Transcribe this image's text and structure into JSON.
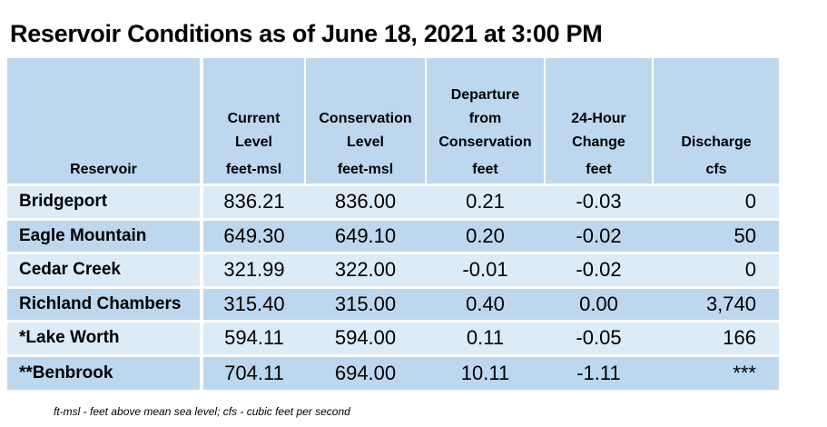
{
  "title": "Reservoir Conditions as of June 18, 2021 at 3:00 PM",
  "columns": [
    {
      "header_lines": [
        "Reservoir"
      ],
      "unit": ""
    },
    {
      "header_lines": [
        "Current",
        "Level"
      ],
      "unit": "feet-msl"
    },
    {
      "header_lines": [
        "Conservation",
        "Level"
      ],
      "unit": "feet-msl"
    },
    {
      "header_lines": [
        "Departure",
        "from",
        "Conservation"
      ],
      "unit": "feet"
    },
    {
      "header_lines": [
        "24-Hour",
        "Change"
      ],
      "unit": "feet"
    },
    {
      "header_lines": [
        "Discharge"
      ],
      "unit": "cfs"
    }
  ],
  "rows": [
    {
      "reservoir": "Bridgeport",
      "current": "836.21",
      "conservation": "836.00",
      "departure": "0.21",
      "change": "-0.03",
      "discharge": "0"
    },
    {
      "reservoir": "Eagle Mountain",
      "current": "649.30",
      "conservation": "649.10",
      "departure": "0.20",
      "change": "-0.02",
      "discharge": "50"
    },
    {
      "reservoir": "Cedar Creek",
      "current": "321.99",
      "conservation": "322.00",
      "departure": "-0.01",
      "change": "-0.02",
      "discharge": "0"
    },
    {
      "reservoir": "Richland Chambers",
      "current": "315.40",
      "conservation": "315.00",
      "departure": "0.40",
      "change": "0.00",
      "discharge": "3,740"
    },
    {
      "reservoir": "*Lake Worth",
      "current": "594.11",
      "conservation": "594.00",
      "departure": "0.11",
      "change": "-0.05",
      "discharge": "166"
    },
    {
      "reservoir": "**Benbrook",
      "current": "704.11",
      "conservation": "694.00",
      "departure": "10.11",
      "change": "-1.11",
      "discharge": "***"
    }
  ],
  "footnote": "ft-msl - feet above mean sea level; cfs - cubic feet per second",
  "colors": {
    "header_bg": "#bdd7ee",
    "row_light": "#ddebf7",
    "row_dark": "#bdd7ee"
  }
}
